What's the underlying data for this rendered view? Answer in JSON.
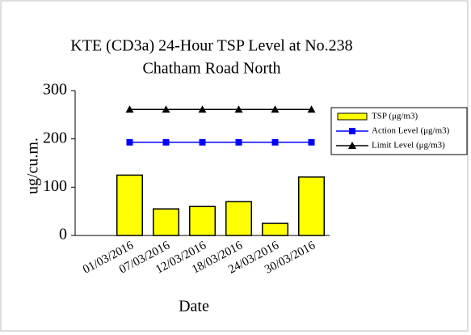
{
  "chart_data": {
    "type": "bar",
    "title": [
      "KTE  (CD3a) 24-Hour TSP Level at No.238",
      "Chatham Road North"
    ],
    "x_label": "Date",
    "y_label": "ug/cu.m.",
    "categories": [
      null,
      "01/03/2016",
      "07/03/2016",
      "12/03/2016",
      "18/03/2016",
      "24/03/2016",
      "30/03/2016"
    ],
    "series": [
      {
        "name": "TSP (μg/m3)",
        "type": "bar",
        "color": "#ffff00",
        "values": [
          null,
          125,
          55,
          60,
          70,
          25,
          121
        ]
      },
      {
        "name": "Action Level (μg/m3)",
        "type": "line",
        "marker": "square",
        "color": "#0000ff",
        "values": [
          null,
          193,
          193,
          193,
          193,
          193,
          193
        ]
      },
      {
        "name": "Limit Level (μg/m3)",
        "type": "line",
        "marker": "triangle",
        "color": "#000000",
        "values": [
          null,
          261,
          261,
          261,
          261,
          261,
          261
        ]
      }
    ],
    "ylim": [
      0,
      300
    ],
    "yticks": [
      0,
      100,
      200,
      300
    ],
    "grid": false,
    "legend": "right"
  }
}
